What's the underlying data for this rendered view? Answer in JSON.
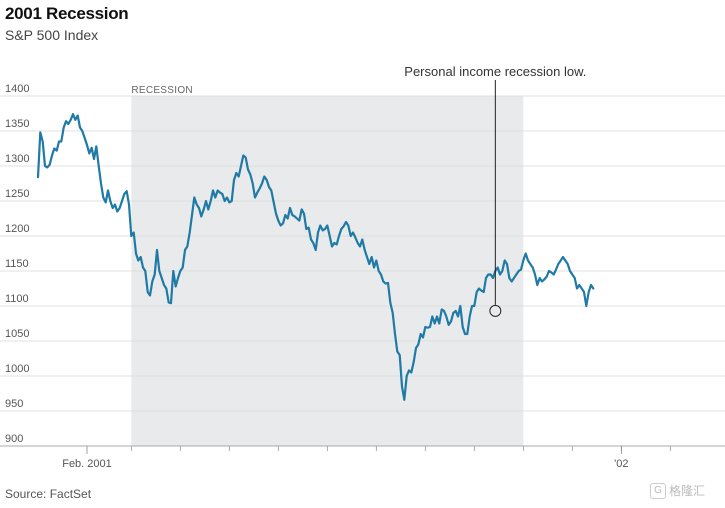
{
  "header": {
    "title": "2001 Recession",
    "subtitle": "S&P 500 Index"
  },
  "footer": {
    "source": "Source: FactSet",
    "watermark": "格隆汇"
  },
  "colors": {
    "line": "#1f7aa5",
    "recession_band": "#e9eaec",
    "grid": "#d9d9d9",
    "annotation": "#222222"
  },
  "chart_data": {
    "type": "line",
    "title": "2001 Recession",
    "subtitle": "S&P 500 Index",
    "xlabel": "",
    "ylabel": "",
    "ylim": [
      900,
      1400
    ],
    "yticks": [
      900,
      950,
      1000,
      1050,
      1100,
      1150,
      1200,
      1250,
      1300,
      1350,
      1400
    ],
    "x_unit": "trading days from 2001-01-02",
    "xlim": [
      0,
      285
    ],
    "xtick_labels": [
      {
        "x": 21,
        "label": "Feb. 2001"
      },
      {
        "x": 250,
        "label": "'02"
      }
    ],
    "minor_xticks": [
      40,
      61,
      82,
      103,
      124,
      145,
      166,
      187,
      208,
      229,
      250,
      271
    ],
    "recession": {
      "label": "RECESSION",
      "start": 40,
      "end": 208
    },
    "annotation": {
      "text": "Personal income recession low.",
      "x": 196,
      "y": 1093
    },
    "series": [
      {
        "name": "S&P 500",
        "points": [
          [
            0,
            1284
          ],
          [
            1,
            1348
          ],
          [
            2,
            1335
          ],
          [
            3,
            1300
          ],
          [
            4,
            1298
          ],
          [
            5,
            1302
          ],
          [
            6,
            1315
          ],
          [
            7,
            1325
          ],
          [
            8,
            1322
          ],
          [
            9,
            1335
          ],
          [
            10,
            1335
          ],
          [
            11,
            1355
          ],
          [
            12,
            1364
          ],
          [
            13,
            1360
          ],
          [
            14,
            1366
          ],
          [
            15,
            1374
          ],
          [
            16,
            1366
          ],
          [
            17,
            1372
          ],
          [
            18,
            1355
          ],
          [
            19,
            1350
          ],
          [
            20,
            1340
          ],
          [
            21,
            1330
          ],
          [
            22,
            1318
          ],
          [
            23,
            1326
          ],
          [
            24,
            1310
          ],
          [
            25,
            1328
          ],
          [
            26,
            1300
          ],
          [
            27,
            1275
          ],
          [
            28,
            1255
          ],
          [
            29,
            1248
          ],
          [
            30,
            1265
          ],
          [
            31,
            1250
          ],
          [
            32,
            1240
          ],
          [
            33,
            1245
          ],
          [
            34,
            1235
          ],
          [
            35,
            1240
          ],
          [
            36,
            1250
          ],
          [
            37,
            1260
          ],
          [
            38,
            1264
          ],
          [
            39,
            1245
          ],
          [
            40,
            1200
          ],
          [
            41,
            1205
          ],
          [
            42,
            1175
          ],
          [
            43,
            1165
          ],
          [
            44,
            1170
          ],
          [
            45,
            1155
          ],
          [
            46,
            1150
          ],
          [
            47,
            1120
          ],
          [
            48,
            1115
          ],
          [
            49,
            1135
          ],
          [
            50,
            1145
          ],
          [
            51,
            1180
          ],
          [
            52,
            1150
          ],
          [
            53,
            1140
          ],
          [
            54,
            1130
          ],
          [
            55,
            1125
          ],
          [
            56,
            1105
          ],
          [
            57,
            1104
          ],
          [
            58,
            1150
          ],
          [
            59,
            1128
          ],
          [
            60,
            1140
          ],
          [
            61,
            1150
          ],
          [
            62,
            1155
          ],
          [
            63,
            1180
          ],
          [
            64,
            1185
          ],
          [
            65,
            1205
          ],
          [
            66,
            1230
          ],
          [
            67,
            1255
          ],
          [
            68,
            1245
          ],
          [
            69,
            1240
          ],
          [
            70,
            1228
          ],
          [
            71,
            1238
          ],
          [
            72,
            1250
          ],
          [
            73,
            1238
          ],
          [
            74,
            1250
          ],
          [
            75,
            1265
          ],
          [
            76,
            1255
          ],
          [
            77,
            1265
          ],
          [
            78,
            1262
          ],
          [
            79,
            1260
          ],
          [
            80,
            1250
          ],
          [
            81,
            1255
          ],
          [
            82,
            1248
          ],
          [
            83,
            1250
          ],
          [
            84,
            1280
          ],
          [
            85,
            1290
          ],
          [
            86,
            1285
          ],
          [
            87,
            1300
          ],
          [
            88,
            1315
          ],
          [
            89,
            1312
          ],
          [
            90,
            1295
          ],
          [
            91,
            1288
          ],
          [
            92,
            1275
          ],
          [
            93,
            1255
          ],
          [
            94,
            1262
          ],
          [
            95,
            1268
          ],
          [
            96,
            1275
          ],
          [
            97,
            1285
          ],
          [
            98,
            1280
          ],
          [
            99,
            1270
          ],
          [
            100,
            1265
          ],
          [
            101,
            1248
          ],
          [
            102,
            1232
          ],
          [
            103,
            1222
          ],
          [
            104,
            1215
          ],
          [
            105,
            1218
          ],
          [
            106,
            1230
          ],
          [
            107,
            1225
          ],
          [
            108,
            1240
          ],
          [
            109,
            1230
          ],
          [
            110,
            1228
          ],
          [
            111,
            1225
          ],
          [
            112,
            1222
          ],
          [
            113,
            1238
          ],
          [
            114,
            1232
          ],
          [
            115,
            1210
          ],
          [
            116,
            1212
          ],
          [
            117,
            1195
          ],
          [
            118,
            1190
          ],
          [
            119,
            1180
          ],
          [
            120,
            1205
          ],
          [
            121,
            1215
          ],
          [
            122,
            1208
          ],
          [
            123,
            1210
          ],
          [
            124,
            1215
          ],
          [
            125,
            1200
          ],
          [
            126,
            1185
          ],
          [
            127,
            1190
          ],
          [
            128,
            1188
          ],
          [
            129,
            1200
          ],
          [
            130,
            1210
          ],
          [
            131,
            1214
          ],
          [
            132,
            1220
          ],
          [
            133,
            1215
          ],
          [
            134,
            1200
          ],
          [
            135,
            1205
          ],
          [
            136,
            1198
          ],
          [
            137,
            1190
          ],
          [
            138,
            1185
          ],
          [
            139,
            1195
          ],
          [
            140,
            1180
          ],
          [
            141,
            1170
          ],
          [
            142,
            1160
          ],
          [
            143,
            1170
          ],
          [
            144,
            1155
          ],
          [
            145,
            1165
          ],
          [
            146,
            1150
          ],
          [
            147,
            1145
          ],
          [
            148,
            1135
          ],
          [
            149,
            1132
          ],
          [
            150,
            1133
          ],
          [
            151,
            1105
          ],
          [
            152,
            1090
          ],
          [
            153,
            1060
          ],
          [
            154,
            1035
          ],
          [
            155,
            1030
          ],
          [
            156,
            985
          ],
          [
            157,
            966
          ],
          [
            158,
            1000
          ],
          [
            159,
            1008
          ],
          [
            160,
            1005
          ],
          [
            161,
            1020
          ],
          [
            162,
            1040
          ],
          [
            163,
            1045
          ],
          [
            164,
            1060
          ],
          [
            165,
            1055
          ],
          [
            166,
            1070
          ],
          [
            167,
            1069
          ],
          [
            168,
            1070
          ],
          [
            169,
            1085
          ],
          [
            170,
            1075
          ],
          [
            171,
            1085
          ],
          [
            172,
            1075
          ],
          [
            173,
            1095
          ],
          [
            174,
            1093
          ],
          [
            175,
            1085
          ],
          [
            176,
            1073
          ],
          [
            177,
            1078
          ],
          [
            178,
            1090
          ],
          [
            179,
            1093
          ],
          [
            180,
            1085
          ],
          [
            181,
            1100
          ],
          [
            182,
            1070
          ],
          [
            183,
            1060
          ],
          [
            184,
            1060
          ],
          [
            185,
            1085
          ],
          [
            186,
            1100
          ],
          [
            187,
            1100
          ],
          [
            188,
            1120
          ],
          [
            189,
            1125
          ],
          [
            190,
            1122
          ],
          [
            191,
            1120
          ],
          [
            192,
            1140
          ],
          [
            193,
            1145
          ],
          [
            194,
            1145
          ],
          [
            195,
            1140
          ],
          [
            196,
            1150
          ],
          [
            197,
            1155
          ],
          [
            198,
            1145
          ],
          [
            199,
            1150
          ],
          [
            200,
            1165
          ],
          [
            201,
            1160
          ],
          [
            202,
            1140
          ],
          [
            203,
            1135
          ],
          [
            204,
            1140
          ],
          [
            205,
            1145
          ],
          [
            206,
            1150
          ],
          [
            207,
            1152
          ],
          [
            208,
            1165
          ],
          [
            209,
            1175
          ],
          [
            210,
            1165
          ],
          [
            211,
            1160
          ],
          [
            212,
            1155
          ],
          [
            213,
            1145
          ],
          [
            214,
            1130
          ],
          [
            215,
            1140
          ],
          [
            216,
            1135
          ],
          [
            217,
            1138
          ],
          [
            218,
            1142
          ],
          [
            219,
            1150
          ],
          [
            220,
            1148
          ],
          [
            221,
            1145
          ],
          [
            222,
            1152
          ],
          [
            223,
            1160
          ],
          [
            224,
            1165
          ],
          [
            225,
            1170
          ],
          [
            226,
            1165
          ],
          [
            227,
            1160
          ],
          [
            228,
            1150
          ],
          [
            229,
            1145
          ],
          [
            230,
            1140
          ],
          [
            231,
            1125
          ],
          [
            232,
            1130
          ],
          [
            233,
            1125
          ],
          [
            234,
            1120
          ],
          [
            235,
            1100
          ],
          [
            236,
            1120
          ],
          [
            237,
            1130
          ],
          [
            238,
            1125
          ]
        ]
      }
    ]
  }
}
